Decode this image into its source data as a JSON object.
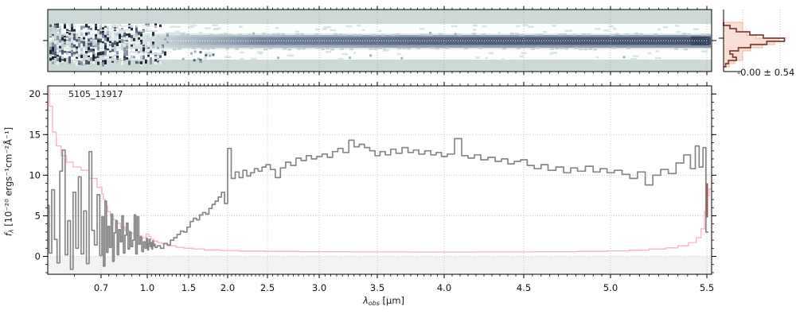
{
  "labels": {
    "object_id": "5105_11917",
    "hist_stats": "-0.00 ± 0.54",
    "xlabel": {
      "prefix": "λ",
      "sub": "obs",
      "rest": " [μm]"
    },
    "ylabel": {
      "prefix": "f",
      "sub": "λ",
      "rest": " [10⁻²⁰ ergs⁻¹cm⁻²Å⁻¹]"
    }
  },
  "colors": {
    "spectrum": "#868686",
    "error": "#f6b4ba",
    "error_end": "#9c4a44",
    "hist_fill": "#f9ded5",
    "hist_fill_edge": "#efb4a5",
    "hist_line": "#7e4035",
    "grid": "#c9c9c9",
    "grid2d": "#bda8a4",
    "panel2d_bg": "#ccd9d6",
    "band_white": "#fdfefe",
    "mid_band": "#dfe9e9",
    "below_zero_band": "#f3f3f3",
    "axis": "#000000",
    "dark_pixel": "#14202e",
    "trace_cap": "#3a4764"
  },
  "chart_data": [
    {
      "id": "spec2d",
      "type": "heatmap",
      "description": "2D rectified spectrum cutout; dark continuum trace centered in slit, noisy residuals at blue end",
      "x_range_um": [
        0.6,
        5.53
      ],
      "trace_center_frac": 0.5,
      "dispersion_anchors": [
        [
          0.6,
          60
        ],
        [
          0.7,
          127
        ],
        [
          1.0,
          185
        ],
        [
          1.5,
          237
        ],
        [
          2.0,
          286
        ],
        [
          2.5,
          336
        ],
        [
          3.0,
          401
        ],
        [
          3.5,
          474
        ],
        [
          4.0,
          558
        ],
        [
          4.5,
          658
        ],
        [
          5.0,
          767
        ],
        [
          5.5,
          888
        ],
        [
          5.53,
          894
        ]
      ]
    },
    {
      "id": "residual_hist",
      "type": "histogram",
      "orientation": "horizontal",
      "annotation": "-0.00 ± 0.54",
      "mean": -0.0,
      "sigma": 0.54,
      "outline_counts": [
        0.0,
        0.09,
        0.18,
        0.37,
        0.56,
        0.86,
        0.61,
        0.38,
        0.21,
        0.09,
        0.13,
        0.18,
        0.07,
        0.03
      ],
      "filled_counts": [
        0.27,
        0.27,
        0.27,
        0.33,
        0.46,
        0.78,
        0.72,
        0.55,
        0.38,
        0.27,
        0.27,
        0.27,
        0.16,
        0.08
      ]
    },
    {
      "id": "spec1d",
      "type": "line",
      "title": "5105_11917",
      "xlabel": "λ_obs [μm]",
      "ylabel": "f_λ [10⁻²⁰ ergs⁻¹cm⁻²Å⁻¹]",
      "xlim": [
        0.6,
        5.55
      ],
      "ylim": [
        -2.1,
        21.0
      ],
      "grid": true,
      "xticks": [
        {
          "value": 0.7,
          "label": "0.7"
        },
        {
          "value": 1.0,
          "label": "1.0"
        },
        {
          "value": 1.5,
          "label": "1.5"
        },
        {
          "value": 2.0,
          "label": "2.0"
        },
        {
          "value": 2.5,
          "label": "2.5"
        },
        {
          "value": 3.0,
          "label": "3.0"
        },
        {
          "value": 3.5,
          "label": "3.5"
        },
        {
          "value": 4.0,
          "label": "4.0"
        },
        {
          "value": 4.5,
          "label": "4.5"
        },
        {
          "value": 5.0,
          "label": "5.0"
        },
        {
          "value": 5.5,
          "label": "5.5"
        }
      ],
      "minor_xtick_step_um": 0.05,
      "yticks": [
        {
          "value": 0,
          "label": "0"
        },
        {
          "value": 5,
          "label": "5"
        },
        {
          "value": 10,
          "label": "10"
        },
        {
          "value": 15,
          "label": "15"
        },
        {
          "value": 20,
          "label": "20"
        }
      ],
      "minor_ytick_step": 1,
      "series": [
        {
          "name": "flux",
          "style": "step",
          "x": [
            0.6,
            0.605,
            0.61,
            0.615,
            0.62,
            0.625,
            0.63,
            0.635,
            0.64,
            0.645,
            0.65,
            0.655,
            0.66,
            0.665,
            0.67,
            0.675,
            0.68,
            0.685,
            0.69,
            0.695,
            0.7,
            0.71,
            0.72,
            0.73,
            0.74,
            0.75,
            0.76,
            0.77,
            0.78,
            0.79,
            0.8,
            0.81,
            0.82,
            0.83,
            0.84,
            0.85,
            0.86,
            0.87,
            0.88,
            0.89,
            0.9,
            0.91,
            0.92,
            0.93,
            0.94,
            0.95,
            0.96,
            0.97,
            0.98,
            0.99,
            1.0,
            1.01,
            1.02,
            1.03,
            1.04,
            1.05,
            1.06,
            1.07,
            1.08,
            1.09,
            1.1,
            1.14,
            1.18,
            1.22,
            1.26,
            1.3,
            1.34,
            1.38,
            1.42,
            1.46,
            1.5,
            1.54,
            1.58,
            1.62,
            1.66,
            1.7,
            1.74,
            1.78,
            1.82,
            1.86,
            1.9,
            1.94,
            1.98,
            2.02,
            2.07,
            2.12,
            2.168,
            2.216,
            2.264,
            2.312,
            2.36,
            2.408,
            2.456,
            2.504,
            2.552,
            2.6,
            2.65,
            2.7,
            2.75,
            2.8,
            2.85,
            2.9,
            2.95,
            3.0,
            3.05,
            3.09,
            3.14,
            3.18,
            3.23,
            3.28,
            3.32,
            3.37,
            3.41,
            3.46,
            3.5,
            3.54,
            3.58,
            3.62,
            3.66,
            3.71,
            3.75,
            3.79,
            3.83,
            3.88,
            3.92,
            3.96,
            4.0,
            4.04,
            4.09,
            4.13,
            4.17,
            4.21,
            4.25,
            4.3,
            4.34,
            4.38,
            4.42,
            4.46,
            4.5,
            4.54,
            4.58,
            4.62,
            4.66,
            4.71,
            4.75,
            4.79,
            4.83,
            4.88,
            4.92,
            4.96,
            5.0,
            5.04,
            5.08,
            5.12,
            5.16,
            5.2,
            5.24,
            5.28,
            5.32,
            5.36,
            5.4,
            5.43,
            5.45,
            5.47,
            5.49,
            5.5
          ],
          "y": [
            6.3,
            0.4,
            8.2,
            2.1,
            -0.8,
            10.5,
            13.1,
            0.2,
            4.4,
            -1.6,
            7.9,
            1.0,
            9.8,
            0.3,
            5.6,
            -0.9,
            12.9,
            3.2,
            1.4,
            7.6,
            0.1,
            4.9,
            -1.2,
            6.8,
            0.5,
            3.7,
            1.1,
            5.2,
            -0.6,
            2.9,
            4.4,
            0.2,
            3.3,
            1.8,
            5.0,
            0.4,
            2.6,
            4.1,
            0.9,
            3.0,
            1.2,
            2.0,
            5.1,
            0.3,
            4.9,
            1.5,
            2.4,
            0.6,
            1.8,
            1.0,
            2.2,
            0.8,
            1.6,
            2.1,
            1.2,
            1.7,
            0.9,
            1.9,
            1.3,
            1.5,
            1.1,
            1.3,
            1.0,
            1.6,
            1.4,
            2.0,
            2.3,
            2.7,
            3.1,
            3.0,
            3.6,
            4.3,
            4.7,
            4.5,
            5.1,
            5.4,
            5.2,
            5.9,
            6.4,
            6.8,
            7.3,
            7.9,
            6.5,
            13.3,
            9.6,
            10.4,
            9.7,
            10.6,
            9.9,
            10.3,
            10.8,
            10.5,
            11.0,
            11.3,
            10.7,
            9.7,
            10.9,
            11.6,
            11.2,
            12.1,
            11.8,
            12.4,
            12.0,
            12.3,
            12.6,
            12.2,
            12.9,
            13.3,
            12.8,
            14.3,
            13.5,
            13.8,
            13.4,
            13.0,
            12.4,
            12.9,
            12.5,
            13.2,
            12.7,
            13.4,
            12.8,
            13.1,
            12.6,
            13.0,
            12.5,
            12.8,
            12.3,
            12.6,
            14.5,
            12.4,
            12.1,
            12.5,
            11.9,
            12.2,
            11.7,
            12.0,
            11.4,
            11.7,
            11.9,
            11.2,
            10.8,
            11.3,
            10.6,
            11.0,
            10.3,
            10.9,
            10.5,
            11.1,
            10.4,
            10.8,
            10.3,
            10.6,
            10.1,
            9.6,
            10.4,
            8.8,
            10.0,
            10.7,
            10.2,
            11.5,
            12.5,
            10.8,
            13.6,
            11.0,
            13.4,
            3.0
          ]
        },
        {
          "name": "uncertainty",
          "style": "step",
          "x": [
            0.6,
            0.606,
            0.612,
            0.62,
            0.63,
            0.64,
            0.655,
            0.67,
            0.685,
            0.7,
            0.71,
            0.72,
            0.735,
            0.75,
            0.77,
            0.79,
            0.81,
            0.84,
            0.87,
            0.9,
            0.94,
            0.98,
            1.01,
            1.03,
            1.06,
            1.1,
            1.15,
            1.2,
            1.3,
            1.4,
            1.5,
            1.6,
            1.8,
            2.0,
            2.3,
            2.6,
            3.0,
            3.5,
            4.0,
            4.4,
            4.7,
            4.9,
            5.05,
            5.15,
            5.25,
            5.32,
            5.38,
            5.43,
            5.46,
            5.48,
            5.495,
            5.51,
            5.52
          ],
          "y": [
            22.0,
            18.5,
            15.3,
            13.6,
            12.4,
            11.6,
            11.0,
            10.6,
            9.6,
            8.5,
            7.7,
            7.0,
            6.2,
            5.5,
            5.0,
            4.5,
            4.1,
            3.6,
            3.2,
            2.85,
            2.55,
            2.3,
            2.75,
            2.45,
            2.1,
            1.9,
            1.7,
            1.55,
            1.3,
            1.12,
            1.0,
            0.92,
            0.8,
            0.72,
            0.66,
            0.62,
            0.58,
            0.55,
            0.54,
            0.55,
            0.58,
            0.62,
            0.68,
            0.76,
            0.9,
            1.05,
            1.3,
            1.7,
            2.3,
            3.4,
            5.5,
            7.5,
            8.3
          ]
        },
        {
          "name": "uncertainty-endcap",
          "style": "vline",
          "x": [
            5.502
          ],
          "y_from": 4.8,
          "y_to": 9.0
        }
      ]
    }
  ]
}
